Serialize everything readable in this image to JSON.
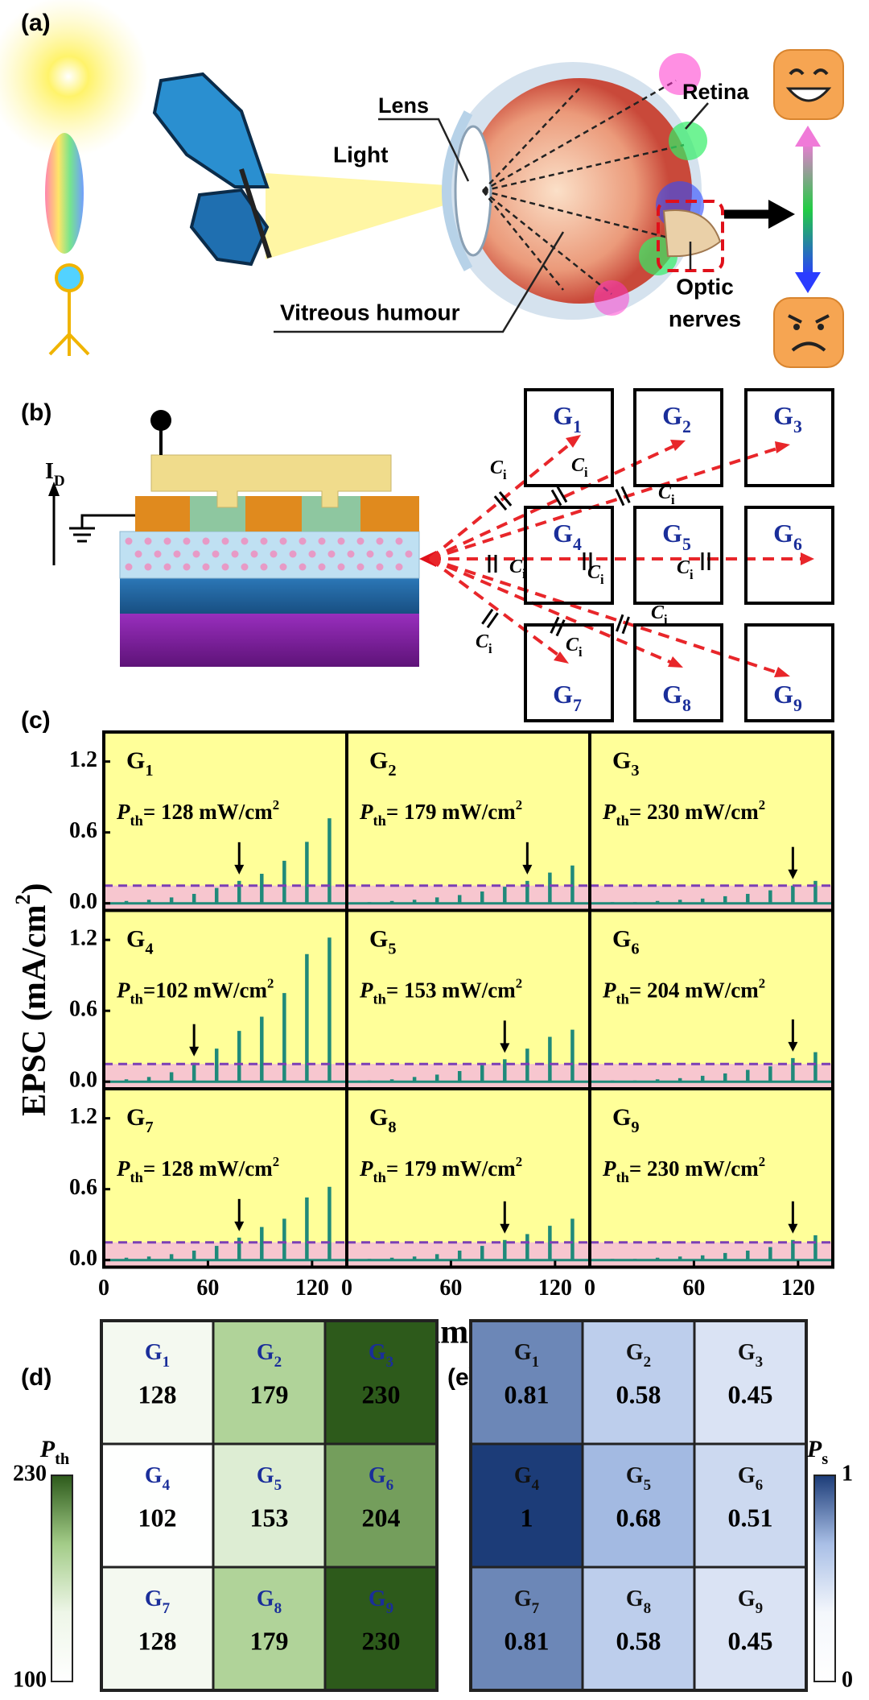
{
  "panel_a": {
    "label": "(a)",
    "lens": "Lens",
    "light": "Light",
    "retina": "Retina",
    "vitreous": "Vitreous humour",
    "optic": [
      "Optic",
      "nerves"
    ]
  },
  "panel_b": {
    "label": "(b)",
    "current": {
      "main": "I",
      "sub": "D"
    },
    "capacitor": {
      "main": "C",
      "sub": "i"
    },
    "gates": [
      {
        "main": "G",
        "sub": "1"
      },
      {
        "main": "G",
        "sub": "2"
      },
      {
        "main": "G",
        "sub": "3"
      },
      {
        "main": "G",
        "sub": "4"
      },
      {
        "main": "G",
        "sub": "5"
      },
      {
        "main": "G",
        "sub": "6"
      },
      {
        "main": "G",
        "sub": "7"
      },
      {
        "main": "G",
        "sub": "8"
      },
      {
        "main": "G",
        "sub": "9"
      }
    ]
  },
  "chart_data": [
    {
      "type": "pulse-grid",
      "panel_label": "(c)",
      "ylabel": {
        "text": "EPSC (mA/cm",
        "sup": "2",
        "close": ")"
      },
      "xlabel": "Time (s)",
      "xlim": [
        0,
        140
      ],
      "ylim": [
        -0.06,
        1.45
      ],
      "xticks": [
        0,
        60,
        120
      ],
      "yticks": [
        {
          "value": 0,
          "label": "0.0"
        },
        0.6,
        1.2
      ],
      "x": [
        13,
        26,
        39,
        52,
        65,
        78,
        91,
        104,
        117,
        130
      ],
      "threshold": 0.15,
      "background": "#ffff99",
      "band_color": "#f7c6cf",
      "threshold_color": "#7b3fb5",
      "series": [
        {
          "name": {
            "main": "G",
            "sub": "1"
          },
          "annotation": {
            "symbol": "P",
            "sub": "th",
            "text": "= 128 mW/cm",
            "sup": "2"
          },
          "color": "#1f8a7a",
          "values": [
            0.02,
            0.03,
            0.05,
            0.08,
            0.13,
            0.19,
            0.25,
            0.36,
            0.52,
            0.72
          ]
        },
        {
          "name": {
            "main": "G",
            "sub": "2"
          },
          "annotation": {
            "symbol": "P",
            "sub": "th",
            "text": "= 179 mW/cm",
            "sup": "2"
          },
          "color": "#1f8a7a",
          "values": [
            0.01,
            0.02,
            0.03,
            0.05,
            0.07,
            0.1,
            0.14,
            0.19,
            0.26,
            0.32
          ]
        },
        {
          "name": {
            "main": "G",
            "sub": "3"
          },
          "annotation": {
            "symbol": "P",
            "sub": "th",
            "text": "= 230 mW/cm",
            "sup": "2"
          },
          "color": "#1f8a7a",
          "values": [
            0.01,
            0.01,
            0.02,
            0.03,
            0.04,
            0.06,
            0.08,
            0.11,
            0.15,
            0.19
          ]
        },
        {
          "name": {
            "main": "G",
            "sub": "4"
          },
          "annotation": {
            "symbol": "P",
            "sub": "th",
            "text": "=102 mW/cm",
            "sup": "2"
          },
          "color": "#1f8a7a",
          "values": [
            0.02,
            0.04,
            0.08,
            0.16,
            0.28,
            0.43,
            0.55,
            0.75,
            1.08,
            1.22
          ]
        },
        {
          "name": {
            "main": "G",
            "sub": "5"
          },
          "annotation": {
            "symbol": "P",
            "sub": "th",
            "text": "= 153 mW/cm",
            "sup": "2"
          },
          "color": "#1f8a7a",
          "values": [
            0.01,
            0.02,
            0.04,
            0.06,
            0.09,
            0.14,
            0.19,
            0.28,
            0.38,
            0.44
          ]
        },
        {
          "name": {
            "main": "G",
            "sub": "6"
          },
          "annotation": {
            "symbol": "P",
            "sub": "th",
            "text": "= 204 mW/cm",
            "sup": "2"
          },
          "color": "#1f8a7a",
          "values": [
            0.01,
            0.01,
            0.02,
            0.03,
            0.05,
            0.07,
            0.1,
            0.13,
            0.2,
            0.25
          ]
        },
        {
          "name": {
            "main": "G",
            "sub": "7"
          },
          "annotation": {
            "symbol": "P",
            "sub": "th",
            "text": "= 128 mW/cm",
            "sup": "2"
          },
          "color": "#1f8a7a",
          "values": [
            0.02,
            0.03,
            0.05,
            0.08,
            0.12,
            0.19,
            0.28,
            0.35,
            0.53,
            0.62
          ]
        },
        {
          "name": {
            "main": "G",
            "sub": "8"
          },
          "annotation": {
            "symbol": "P",
            "sub": "th",
            "text": "= 179 mW/cm",
            "sup": "2"
          },
          "color": "#1f8a7a",
          "values": [
            0.01,
            0.02,
            0.03,
            0.05,
            0.08,
            0.12,
            0.17,
            0.22,
            0.29,
            0.35
          ]
        },
        {
          "name": {
            "main": "G",
            "sub": "9"
          },
          "annotation": {
            "symbol": "P",
            "sub": "th",
            "text": "= 230 mW/cm",
            "sup": "2"
          },
          "color": "#1f8a7a",
          "values": [
            0.01,
            0.01,
            0.02,
            0.03,
            0.04,
            0.06,
            0.08,
            0.11,
            0.17,
            0.21
          ]
        }
      ]
    },
    {
      "type": "heatmap",
      "panel_label": "(d)",
      "colorbar_label": {
        "main": "P",
        "sub": "th"
      },
      "zlim": [
        100,
        230
      ],
      "zticks": [
        230,
        100
      ],
      "colors": [
        "#ffffff",
        "#eef6e8",
        "#a3cc88",
        "#2d5a1b"
      ],
      "label_color": "#1a2e9a",
      "cells": [
        [
          {
            "name": {
              "main": "G",
              "sub": "1"
            },
            "value": 128
          },
          {
            "name": {
              "main": "G",
              "sub": "2"
            },
            "value": 179
          },
          {
            "name": {
              "main": "G",
              "sub": "3"
            },
            "value": 230
          }
        ],
        [
          {
            "name": {
              "main": "G",
              "sub": "4"
            },
            "value": 102
          },
          {
            "name": {
              "main": "G",
              "sub": "5"
            },
            "value": 153
          },
          {
            "name": {
              "main": "G",
              "sub": "6"
            },
            "value": 204
          }
        ],
        [
          {
            "name": {
              "main": "G",
              "sub": "7"
            },
            "value": 128
          },
          {
            "name": {
              "main": "G",
              "sub": "8"
            },
            "value": 179
          },
          {
            "name": {
              "main": "G",
              "sub": "9"
            },
            "value": 230
          }
        ]
      ]
    },
    {
      "type": "heatmap",
      "panel_label": "(e)",
      "colorbar_label": {
        "main": "P",
        "sub": "s"
      },
      "zlim": [
        0,
        1
      ],
      "zticks": [
        1,
        0
      ],
      "colors": [
        "#ffffff",
        "#f4f7fc",
        "#a9bfe6",
        "#1c3c78"
      ],
      "label_color": "#111111",
      "cells": [
        [
          {
            "name": {
              "main": "G",
              "sub": "1"
            },
            "value": 0.81
          },
          {
            "name": {
              "main": "G",
              "sub": "2"
            },
            "value": 0.58
          },
          {
            "name": {
              "main": "G",
              "sub": "3"
            },
            "value": 0.45
          }
        ],
        [
          {
            "name": {
              "main": "G",
              "sub": "4"
            },
            "value": 1
          },
          {
            "name": {
              "main": "G",
              "sub": "5"
            },
            "value": 0.68
          },
          {
            "name": {
              "main": "G",
              "sub": "6"
            },
            "value": 0.51
          }
        ],
        [
          {
            "name": {
              "main": "G",
              "sub": "7"
            },
            "value": 0.81
          },
          {
            "name": {
              "main": "G",
              "sub": "8"
            },
            "value": 0.58
          },
          {
            "name": {
              "main": "G",
              "sub": "9"
            },
            "value": 0.45
          }
        ]
      ]
    }
  ]
}
